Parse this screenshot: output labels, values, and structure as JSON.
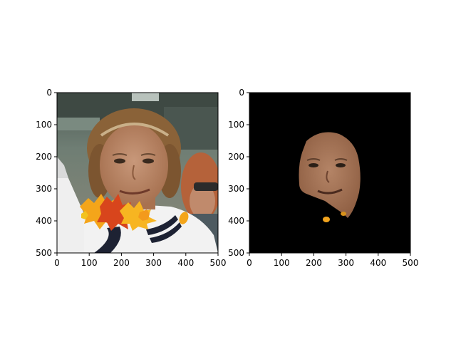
{
  "figure": {
    "background": "#ffffff",
    "panels": [
      {
        "id": "original",
        "description_colors": {
          "skin": "#b98462",
          "hair": "#8a6238",
          "shirt": "#f2f2f2",
          "background_bg": "#5a6a62",
          "leaf_orange": "#f4a51a",
          "leaf_red": "#d8451c"
        },
        "x_ticks": [
          "0",
          "100",
          "200",
          "300",
          "400",
          "500"
        ],
        "y_ticks": [
          "0",
          "100",
          "200",
          "300",
          "400",
          "500"
        ]
      },
      {
        "id": "mask",
        "description_colors": {
          "background": "#000000",
          "skin": "#a87556"
        },
        "x_ticks": [
          "0",
          "100",
          "200",
          "300",
          "400",
          "500"
        ],
        "y_ticks": [
          "0",
          "100",
          "200",
          "300",
          "400",
          "500"
        ]
      }
    ]
  }
}
